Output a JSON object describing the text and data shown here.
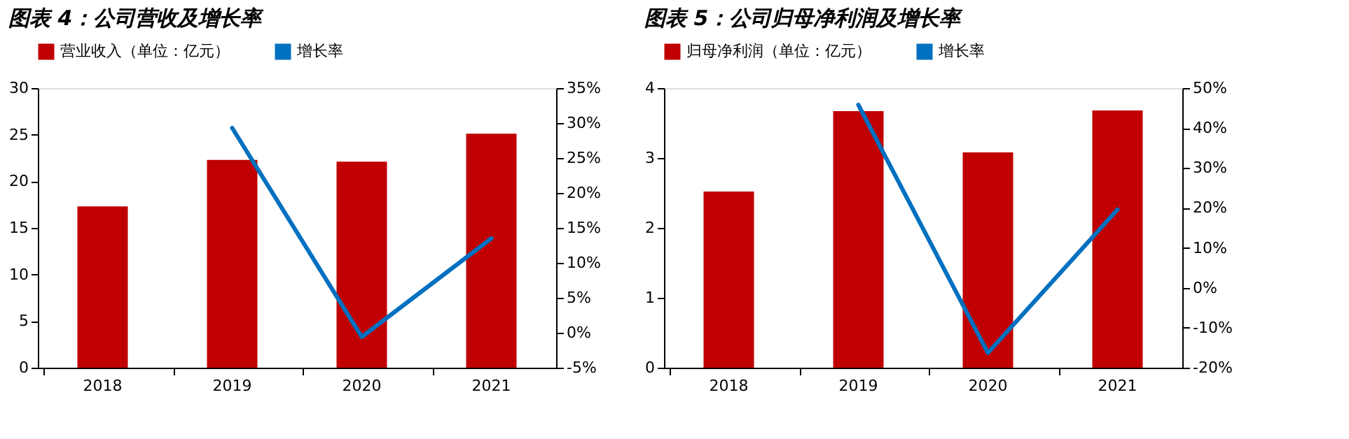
{
  "chart_data": [
    {
      "type": "bar",
      "title": "图表 4：公司营收及增长率",
      "categories": [
        "2018",
        "2019",
        "2020",
        "2021"
      ],
      "series": [
        {
          "name": "营业收入（单位：亿元）",
          "color": "#c00000",
          "values": [
            17.3,
            22.3,
            22.1,
            25.1
          ]
        },
        {
          "name": "增长率",
          "type": "line",
          "axis": "y2",
          "color": "#0070c0",
          "values": [
            null,
            29.3,
            -0.6,
            13.5
          ]
        }
      ],
      "ylim": [
        0,
        30
      ],
      "yticks": [
        0,
        5,
        10,
        15,
        20,
        25,
        30
      ],
      "y2lim": [
        -5,
        35
      ],
      "y2ticks": [
        {
          "value": -5,
          "label": "-5%"
        },
        {
          "value": 0,
          "label": "0%"
        },
        {
          "value": 5,
          "label": "5%"
        },
        {
          "value": 10,
          "label": "10%"
        },
        {
          "value": 15,
          "label": "15%"
        },
        {
          "value": 20,
          "label": "20%"
        },
        {
          "value": 25,
          "label": "25%"
        },
        {
          "value": 30,
          "label": "30%"
        },
        {
          "value": 35,
          "label": "35%"
        }
      ],
      "legend": "top",
      "grid": false
    },
    {
      "type": "bar",
      "title": "图表 5：公司归母净利润及增长率",
      "categories": [
        "2018",
        "2019",
        "2020",
        "2021"
      ],
      "series": [
        {
          "name": "归母净利润（单位：亿元）",
          "color": "#c00000",
          "values": [
            2.52,
            3.67,
            3.08,
            3.68
          ]
        },
        {
          "name": "增长率",
          "type": "line",
          "axis": "y2",
          "color": "#0070c0",
          "values": [
            null,
            45.8,
            -16.3,
            19.6
          ]
        }
      ],
      "ylim": [
        0,
        4
      ],
      "yticks": [
        0,
        1,
        2,
        3,
        4
      ],
      "y2lim": [
        -20,
        50
      ],
      "y2ticks": [
        {
          "value": -20,
          "label": "-20%"
        },
        {
          "value": -10,
          "label": "-10%"
        },
        {
          "value": 0,
          "label": "0%"
        },
        {
          "value": 10,
          "label": "10%"
        },
        {
          "value": 20,
          "label": "20%"
        },
        {
          "value": 30,
          "label": "30%"
        },
        {
          "value": 40,
          "label": "40%"
        },
        {
          "value": 50,
          "label": "50%"
        }
      ],
      "legend": "top",
      "grid": false
    }
  ]
}
